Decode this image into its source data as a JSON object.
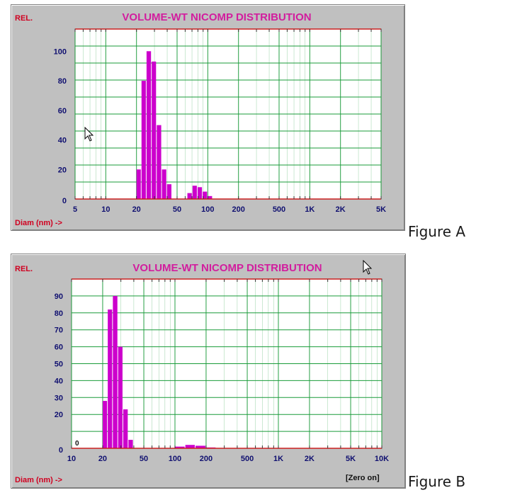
{
  "colors": {
    "panel_bg": "#c0c0c0",
    "plot_bg": "#ffffff",
    "grid": "#1a9b3a",
    "bar": "#cc00cc",
    "axis_red": "#cc2020",
    "text_red": "#d00020",
    "text_title": "#d21d9e",
    "text_ticks": "#101070"
  },
  "cursor_icon": "mouse-pointer-icon",
  "figures": [
    {
      "label": "Figure A",
      "chart_data": {
        "type": "bar",
        "title": "VOLUME-WT NICOMP DISTRIBUTION",
        "ylabel": "REL.",
        "xlabel": "Diam (nm) ->",
        "x_scale": "log",
        "xlim": [
          5,
          5000
        ],
        "ylim": [
          0,
          115
        ],
        "x_ticks": [
          {
            "value": 5,
            "label": "5"
          },
          {
            "value": 10,
            "label": "10"
          },
          {
            "value": 20,
            "label": "20"
          },
          {
            "value": 50,
            "label": "50"
          },
          {
            "value": 100,
            "label": "100"
          },
          {
            "value": 200,
            "label": "200"
          },
          {
            "value": 500,
            "label": "500"
          },
          {
            "value": 1000,
            "label": "1K"
          },
          {
            "value": 2000,
            "label": "2K"
          },
          {
            "value": 5000,
            "label": "5K"
          }
        ],
        "y_ticks": [
          {
            "value": 0,
            "label": "0"
          },
          {
            "value": 20,
            "label": "20"
          },
          {
            "value": 40,
            "label": "40"
          },
          {
            "value": 60,
            "label": "60"
          },
          {
            "value": 80,
            "label": "80"
          },
          {
            "value": 100,
            "label": "100"
          }
        ],
        "grid": true,
        "bins": [
          {
            "lo": 20,
            "hi": 22.4,
            "y": 20
          },
          {
            "lo": 22.4,
            "hi": 25.1,
            "y": 80
          },
          {
            "lo": 25.1,
            "hi": 28.2,
            "y": 100
          },
          {
            "lo": 28.2,
            "hi": 31.6,
            "y": 93
          },
          {
            "lo": 31.6,
            "hi": 35.5,
            "y": 50
          },
          {
            "lo": 35.5,
            "hi": 39.8,
            "y": 20
          },
          {
            "lo": 39.8,
            "hi": 44.7,
            "y": 10
          },
          {
            "lo": 63.1,
            "hi": 70.8,
            "y": 4
          },
          {
            "lo": 70.8,
            "hi": 79.4,
            "y": 9
          },
          {
            "lo": 79.4,
            "hi": 89.1,
            "y": 8
          },
          {
            "lo": 89.1,
            "hi": 100,
            "y": 5
          },
          {
            "lo": 100,
            "hi": 112,
            "y": 2
          }
        ]
      }
    },
    {
      "label": "Figure B",
      "zero_note": "[Zero on]",
      "zero_marker": "0",
      "chart_data": {
        "type": "bar",
        "title": "VOLUME-WT NICOMP DISTRIBUTION",
        "ylabel": "REL.",
        "xlabel": "Diam (nm) ->",
        "x_scale": "log",
        "xlim": [
          10,
          10000
        ],
        "ylim": [
          0,
          100
        ],
        "x_ticks": [
          {
            "value": 10,
            "label": "10"
          },
          {
            "value": 20,
            "label": "20"
          },
          {
            "value": 50,
            "label": "50"
          },
          {
            "value": 100,
            "label": "100"
          },
          {
            "value": 200,
            "label": "200"
          },
          {
            "value": 500,
            "label": "500"
          },
          {
            "value": 1000,
            "label": "1K"
          },
          {
            "value": 2000,
            "label": "2K"
          },
          {
            "value": 5000,
            "label": "5K"
          },
          {
            "value": 10000,
            "label": "10K"
          }
        ],
        "y_ticks": [
          {
            "value": 0,
            "label": "0"
          },
          {
            "value": 20,
            "label": "20"
          },
          {
            "value": 30,
            "label": "30"
          },
          {
            "value": 40,
            "label": "40"
          },
          {
            "value": 50,
            "label": "50"
          },
          {
            "value": 60,
            "label": "60"
          },
          {
            "value": 70,
            "label": "70"
          },
          {
            "value": 80,
            "label": "80"
          },
          {
            "value": 90,
            "label": "90"
          }
        ],
        "grid": true,
        "bins": [
          {
            "lo": 20.0,
            "hi": 22.4,
            "y": 28
          },
          {
            "lo": 22.4,
            "hi": 25.1,
            "y": 82
          },
          {
            "lo": 25.1,
            "hi": 28.2,
            "y": 90
          },
          {
            "lo": 28.2,
            "hi": 31.6,
            "y": 60
          },
          {
            "lo": 31.6,
            "hi": 35.5,
            "y": 23
          },
          {
            "lo": 35.5,
            "hi": 39.8,
            "y": 5
          },
          {
            "lo": 100,
            "hi": 126,
            "y": 1
          },
          {
            "lo": 126,
            "hi": 158,
            "y": 2
          },
          {
            "lo": 158,
            "hi": 200,
            "y": 1.5
          },
          {
            "lo": 200,
            "hi": 251,
            "y": 0.5
          }
        ]
      }
    }
  ]
}
